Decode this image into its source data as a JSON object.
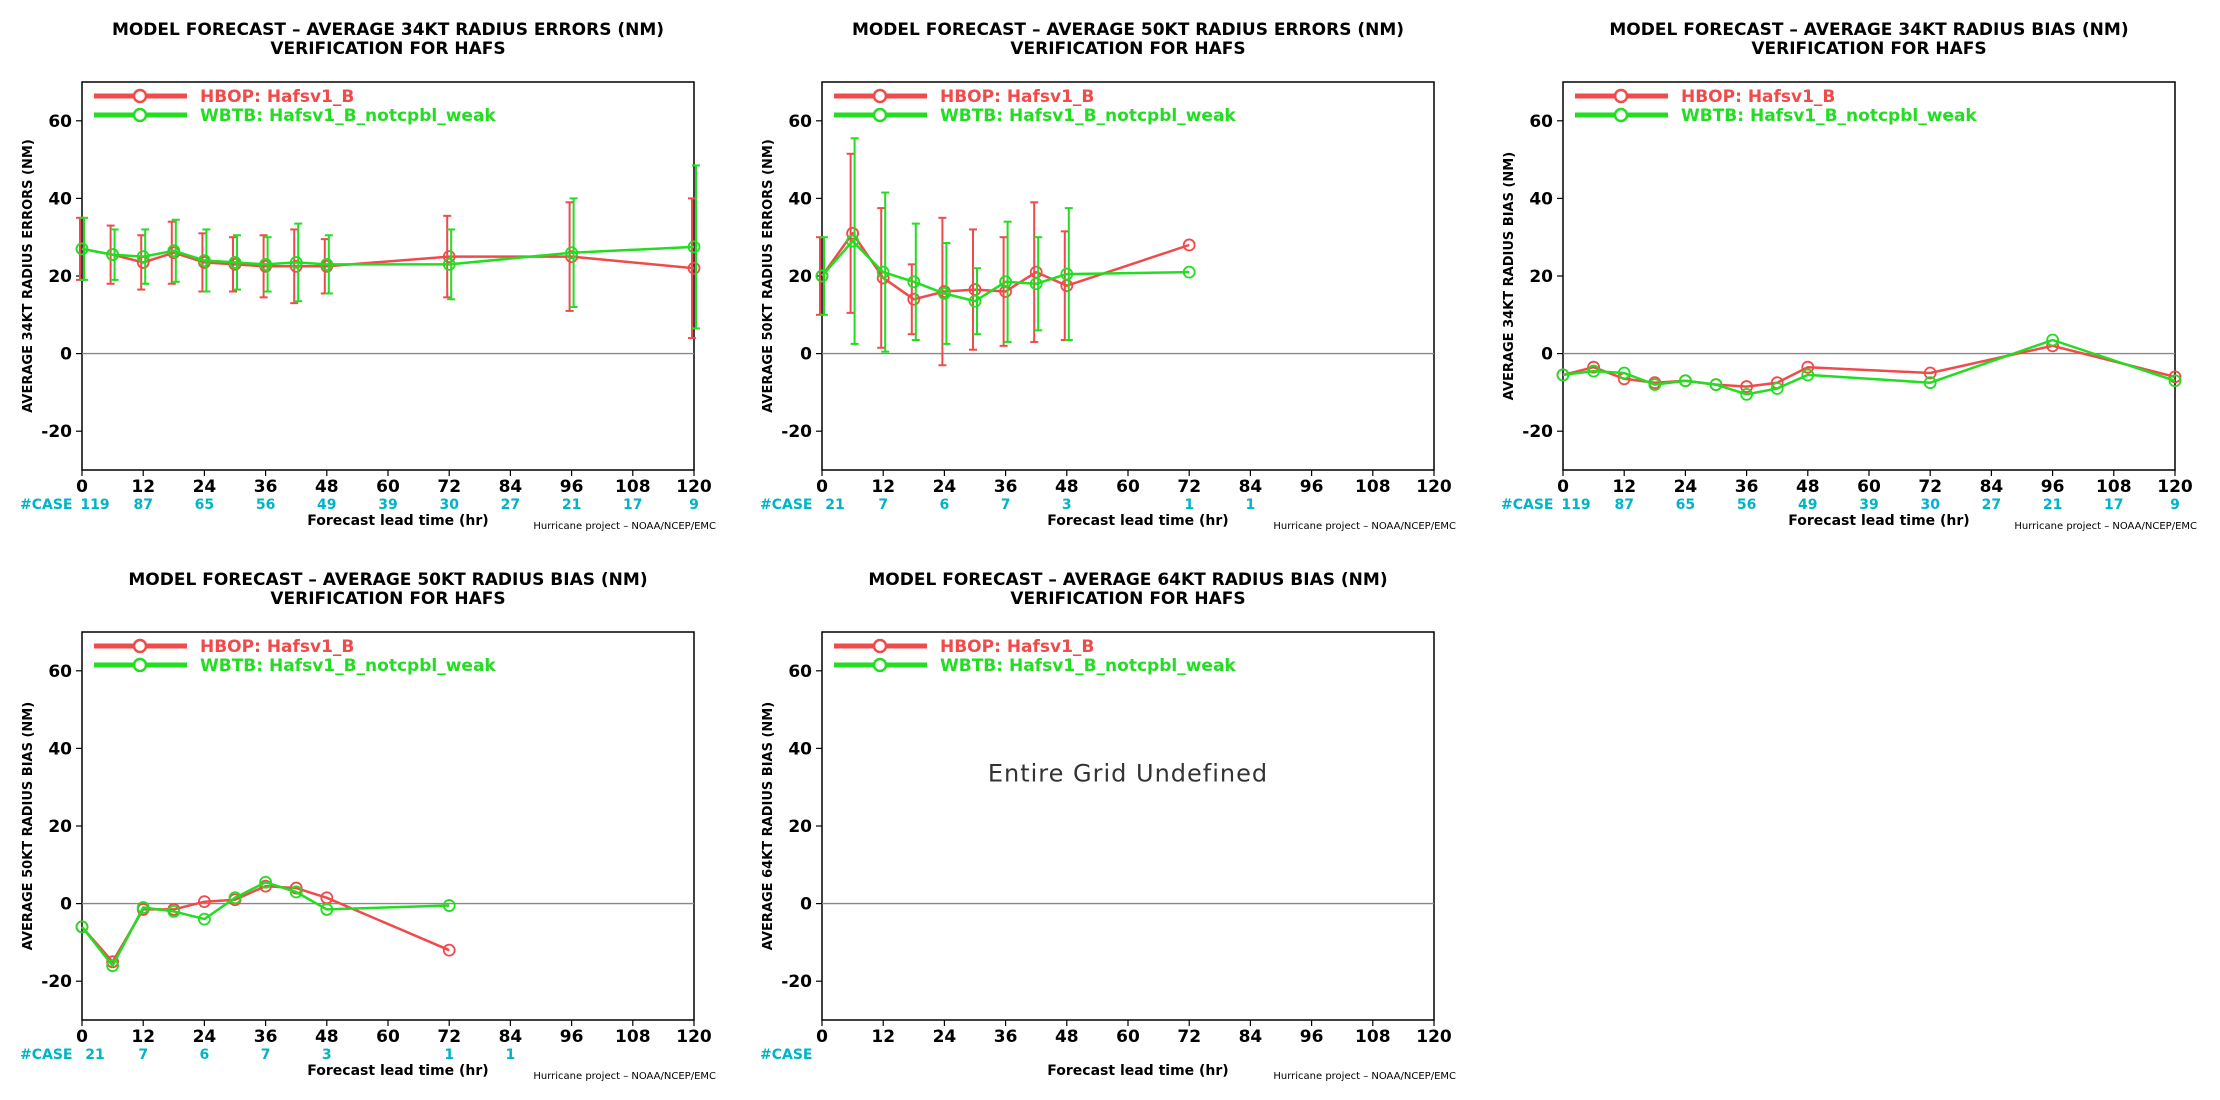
{
  "figure": {
    "common": {
      "xlabel": "Forecast lead time (hr)",
      "credit": "Hurricane project – NOAA/NCEP/EMC",
      "case_prefix": "#CASE",
      "line2": "VERIFICATION FOR HAFS",
      "undefined_text": "Entire Grid Undefined",
      "colors": {
        "hbop": "#f04b4b",
        "wbtb": "#22dd22",
        "case": "#00b4c8",
        "zero_line": "#888888"
      },
      "legend": [
        "HBOP:  Hafsv1_B",
        "WBTB:  Hafsv1_B_notcpbl_weak"
      ],
      "yticks": [
        -20,
        0,
        20,
        40,
        60
      ],
      "xticks": [
        0,
        12,
        24,
        36,
        48,
        60,
        72,
        84,
        96,
        108,
        120
      ],
      "xlim": [
        0,
        120
      ],
      "ylim": [
        -30,
        70
      ]
    }
  },
  "chart_data": [
    {
      "type": "line",
      "title": "MODEL FORECAST – AVERAGE 34KT RADIUS ERRORS (NM)",
      "subtitle": "VERIFICATION FOR HAFS",
      "xlabel": "Forecast lead time (hr)",
      "ylabel": "AVERAGE 34KT RADIUS ERRORS (NM)",
      "xlim": [
        0,
        120
      ],
      "ylim": [
        -30,
        70
      ],
      "case_counts": [
        "119",
        "87",
        "65",
        "56",
        "49",
        "39",
        "30",
        "27",
        "21",
        "17",
        "9"
      ],
      "series": [
        {
          "name": "HBOP:  Hafsv1_B",
          "x": [
            0,
            6,
            12,
            18,
            24,
            30,
            36,
            42,
            48,
            72,
            96,
            120
          ],
          "y": [
            27,
            25.5,
            23.5,
            26,
            23.5,
            23,
            22.5,
            22.5,
            22.5,
            25,
            25,
            22
          ],
          "err": [
            8,
            7.5,
            7,
            8,
            7.5,
            7,
            8,
            9.5,
            7,
            10.5,
            14,
            18
          ]
        },
        {
          "name": "WBTB:  Hafsv1_B_notcpbl_weak",
          "x": [
            0,
            6,
            12,
            18,
            24,
            30,
            36,
            42,
            48,
            72,
            96,
            120
          ],
          "y": [
            27,
            25.5,
            25,
            26.5,
            24,
            23.5,
            23,
            23.5,
            23,
            23,
            26,
            27.5
          ],
          "err": [
            8,
            6.5,
            7,
            8,
            8,
            7,
            7,
            10,
            7.5,
            9,
            14,
            21
          ]
        }
      ]
    },
    {
      "type": "line",
      "title": "MODEL FORECAST – AVERAGE 50KT RADIUS ERRORS (NM)",
      "subtitle": "VERIFICATION FOR HAFS",
      "xlabel": "Forecast lead time (hr)",
      "ylabel": "AVERAGE 50KT RADIUS ERRORS (NM)",
      "xlim": [
        0,
        120
      ],
      "ylim": [
        -30,
        70
      ],
      "case_counts": [
        "21",
        "7",
        "6",
        "7",
        "3",
        "",
        "1",
        "1",
        "",
        "",
        ""
      ],
      "series": [
        {
          "name": "HBOP:  Hafsv1_B",
          "x": [
            0,
            6,
            12,
            18,
            24,
            30,
            36,
            42,
            48,
            72
          ],
          "y": [
            20,
            31,
            19.5,
            14,
            16,
            16.5,
            16,
            21,
            17.5,
            28
          ],
          "err": [
            10,
            20.5,
            18,
            9,
            19,
            15.5,
            14,
            18,
            14,
            0
          ]
        },
        {
          "name": "WBTB:  Hafsv1_B_notcpbl_weak",
          "x": [
            0,
            6,
            12,
            18,
            24,
            30,
            36,
            42,
            48,
            72
          ],
          "y": [
            20,
            29,
            21,
            18.5,
            15.5,
            13.5,
            18.5,
            18,
            20.5,
            21
          ],
          "err": [
            10,
            26.5,
            20.5,
            15,
            13,
            8.5,
            15.5,
            12,
            17,
            0
          ]
        }
      ]
    },
    {
      "type": "line",
      "title": "MODEL FORECAST – AVERAGE 34KT RADIUS BIAS (NM)",
      "subtitle": "VERIFICATION FOR HAFS",
      "xlabel": "Forecast lead time (hr)",
      "ylabel": "AVERAGE 34KT RADIUS BIAS (NM)",
      "xlim": [
        0,
        120
      ],
      "ylim": [
        -30,
        70
      ],
      "case_counts": [
        "119",
        "87",
        "65",
        "56",
        "49",
        "39",
        "30",
        "27",
        "21",
        "17",
        "9"
      ],
      "series": [
        {
          "name": "HBOP:  Hafsv1_B",
          "x": [
            0,
            6,
            12,
            18,
            24,
            30,
            36,
            42,
            48,
            72,
            96,
            120
          ],
          "y": [
            -5.5,
            -3.5,
            -6.5,
            -7.5,
            -7,
            -8,
            -8.5,
            -7.5,
            -3.5,
            -5,
            2,
            -6
          ]
        },
        {
          "name": "WBTB:  Hafsv1_B_notcpbl_weak",
          "x": [
            0,
            6,
            12,
            18,
            24,
            30,
            36,
            42,
            48,
            72,
            96,
            120
          ],
          "y": [
            -5.5,
            -4.5,
            -5,
            -8,
            -7,
            -8,
            -10.5,
            -9,
            -5.5,
            -7.5,
            3.5,
            -7
          ]
        }
      ]
    },
    {
      "type": "line",
      "title": "MODEL FORECAST – AVERAGE 50KT RADIUS BIAS (NM)",
      "subtitle": "VERIFICATION FOR HAFS",
      "xlabel": "Forecast lead time (hr)",
      "ylabel": "AVERAGE 50KT RADIUS BIAS (NM)",
      "xlim": [
        0,
        120
      ],
      "ylim": [
        -30,
        70
      ],
      "case_counts": [
        "21",
        "7",
        "6",
        "7",
        "3",
        "",
        "1",
        "1",
        "",
        "",
        ""
      ],
      "series": [
        {
          "name": "HBOP:  Hafsv1_B",
          "x": [
            0,
            6,
            12,
            18,
            24,
            30,
            36,
            42,
            48,
            72
          ],
          "y": [
            -6,
            -15,
            -1.5,
            -1.5,
            0.5,
            1,
            4.5,
            4,
            1.5,
            -12
          ]
        },
        {
          "name": "WBTB:  Hafsv1_B_notcpbl_weak",
          "x": [
            0,
            6,
            12,
            18,
            24,
            30,
            36,
            42,
            48,
            72
          ],
          "y": [
            -6,
            -16,
            -1,
            -2,
            -4,
            1.5,
            5.5,
            3,
            -1.5,
            -0.5
          ]
        }
      ]
    },
    {
      "type": "line",
      "title": "MODEL FORECAST – AVERAGE 64KT RADIUS BIAS (NM)",
      "subtitle": "VERIFICATION FOR HAFS",
      "xlabel": "Forecast lead time (hr)",
      "ylabel": "AVERAGE 64KT RADIUS BIAS (NM)",
      "xlim": [
        0,
        120
      ],
      "ylim": [
        -30,
        70
      ],
      "case_counts": [],
      "empty": true,
      "series": []
    }
  ]
}
